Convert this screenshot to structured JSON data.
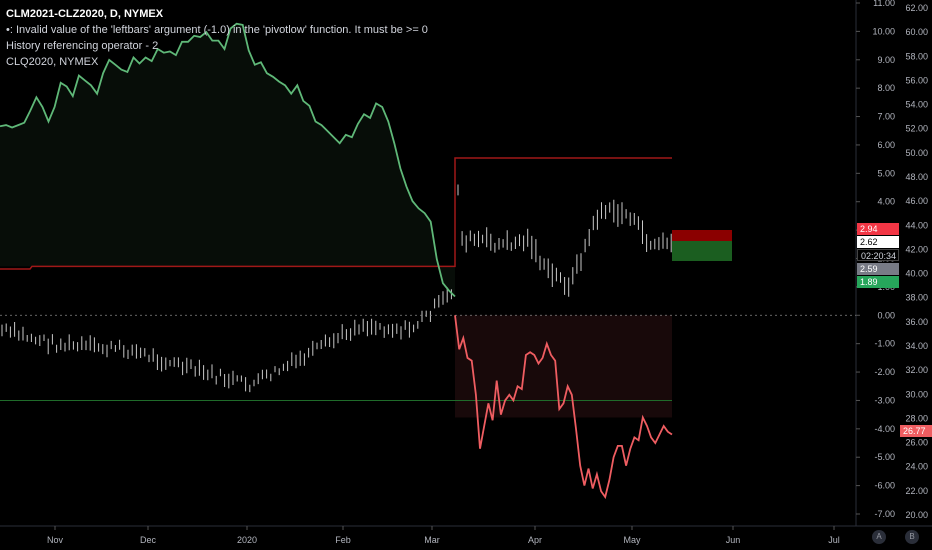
{
  "legend": {
    "title": "CLM2021-CLZ2020, D, NYMEX",
    "error": "•: Invalid value of the 'leftbars' argument (-1.0) in the 'pivotlow' function. It must be >= 0",
    "history": "History referencing operator - 2",
    "symbol": "CLQ2020, NYMEX"
  },
  "axes": {
    "left_ticks": [
      "11.00",
      "10.00",
      "9.00",
      "8.00",
      "7.00",
      "6.00",
      "5.00",
      "4.00",
      "3.00",
      "2.00",
      "1.00",
      "0.00",
      "-1.00",
      "-2.00",
      "-3.00",
      "-4.00",
      "-5.00",
      "-6.00",
      "-7.00"
    ],
    "right_ticks": [
      "62.00",
      "60.00",
      "58.00",
      "56.00",
      "54.00",
      "52.00",
      "50.00",
      "48.00",
      "46.00",
      "44.00",
      "42.00",
      "40.00",
      "38.00",
      "36.00",
      "34.00",
      "32.00",
      "30.00",
      "28.00",
      "26.00",
      "24.00",
      "22.00",
      "20.00"
    ],
    "x_ticks": [
      "Nov",
      "Dec",
      "2020",
      "Feb",
      "Mar",
      "Apr",
      "May",
      "Jun",
      "Jul"
    ]
  },
  "badges": {
    "red": "2.94",
    "white": "2.62",
    "timer": "02:20:34",
    "gray": "2.59",
    "green": "1.89",
    "pink": "26.77"
  },
  "buttons": {
    "auto": "A",
    "log": "B"
  },
  "colors": {
    "green_line": "#5fb878",
    "red_line": "#ef5d61",
    "pivot_line": "#a01818",
    "bars": "#c8c8c8",
    "zero_line": "#888888",
    "level_line": "#1f6b2a"
  },
  "chart_data": {
    "type": "line",
    "series": [
      {
        "values_right_axis": [
          52.2,
          52.3,
          52.1,
          52.3,
          52.5,
          53.5,
          54.6,
          53.8,
          52.6,
          53.8,
          55.8,
          55.5,
          54.7,
          56.4,
          56.0,
          55.6,
          54.9,
          56.6,
          57.7,
          57.3,
          56.9,
          56.7,
          57.9,
          57.4,
          57.9,
          57.6,
          58.6,
          58.3,
          58.4,
          58.1,
          59.2,
          59.2,
          59.7,
          59.6,
          60.0,
          59.3,
          59.3,
          58.6,
          60.3,
          60.7,
          60.6,
          58.5,
          57.3,
          57.5,
          56.6,
          56.3,
          55.9,
          55.6,
          54.9,
          55.6,
          54.3,
          53.9,
          52.6,
          52.3,
          51.8,
          51.3,
          50.8,
          51.5,
          51.3,
          52.4,
          53.2,
          52.9,
          54.1,
          53.8,
          52.6,
          50.8,
          48.7,
          47.2,
          46.0,
          45.4,
          45.0,
          44.3,
          41.2,
          39.2,
          38.6,
          38.1
        ]
      },
      {
        "values_left_axis": [
          0.0,
          -1.2,
          -0.8,
          -1.5,
          -1.6,
          -2.8,
          -4.7,
          -3.9,
          -3.1,
          -3.7,
          -2.3,
          -3.5,
          -3.0,
          -2.8,
          -3.0,
          -2.5,
          -2.6,
          -1.4,
          -1.3,
          -1.4,
          -1.7,
          -1.5,
          -1.0,
          -1.4,
          -1.6,
          -3.3,
          -3.1,
          -2.5,
          -2.8,
          -4.0,
          -5.3,
          -6.0,
          -5.4,
          -6.1,
          -5.6,
          -6.2,
          -6.4,
          -5.8,
          -5.0,
          -4.6,
          -4.6,
          -5.3,
          -4.7,
          -4.3,
          -4.4,
          -3.6,
          -3.9,
          -4.3,
          -4.5,
          -4.2,
          -3.9,
          -4.1,
          -4.2
        ]
      }
    ],
    "horizontal_lines": [
      {
        "value": 40.6
      },
      {
        "value": 0.0
      },
      {
        "value": -3.0
      }
    ],
    "legend": [
      "CLM2021-CLZ2020, D, NYMEX",
      "CLQ2020, NYMEX"
    ],
    "ylim_left": [
      -7.3,
      11.0
    ],
    "ylim_right": [
      20.0,
      62.0
    ]
  }
}
